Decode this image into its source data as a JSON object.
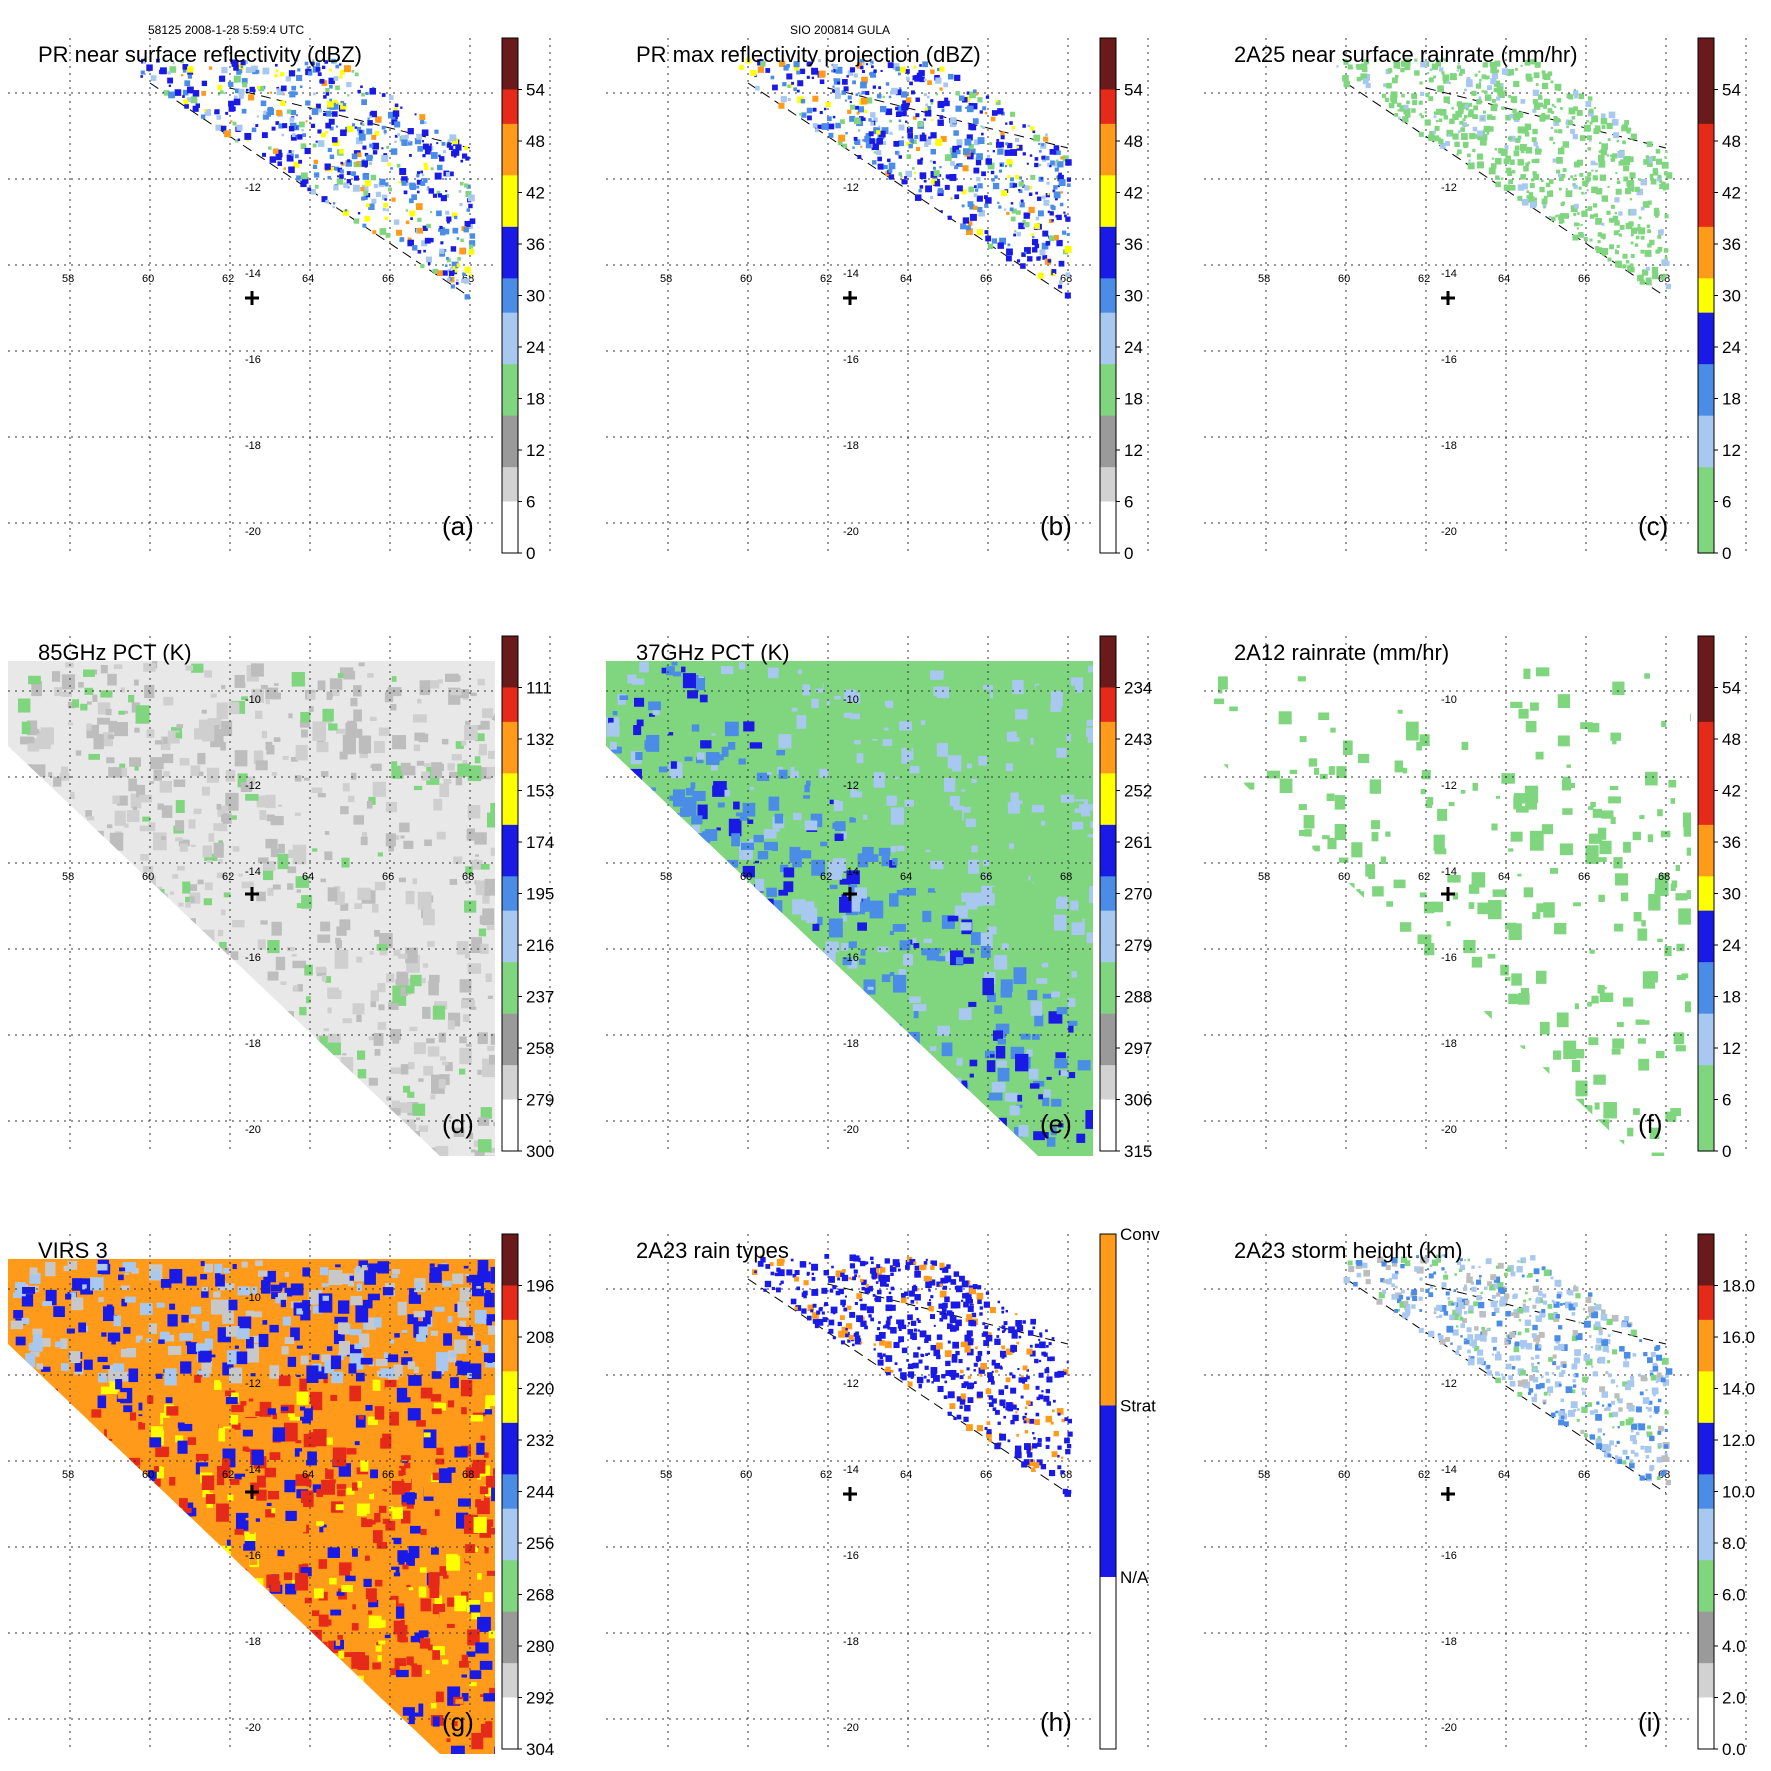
{
  "header": {
    "left": "58125 2008-1-28 5:59:4 UTC",
    "center": "SIO 200814 GULA"
  },
  "axes": {
    "lon_ticks": [
      "58",
      "60",
      "62",
      "64",
      "66",
      "68"
    ],
    "lat_ticks": [
      "-12",
      "-14",
      "-16",
      "-18",
      "-20"
    ],
    "lat_ticks_full": [
      "-10",
      "-12",
      "-14",
      "-16",
      "-18",
      "-20"
    ]
  },
  "colors": {
    "white": "#ffffff",
    "lightgray": "#d2d2d2",
    "gray": "#9a9a9a",
    "green": "#7fd67f",
    "lightblue": "#a8c8f0",
    "midblue": "#4a8ce6",
    "blue": "#1a1ae6",
    "yellow": "#ffff00",
    "orange": "#ff9a1a",
    "red": "#e62a1a",
    "darkred": "#6a1a1a"
  },
  "panels": [
    {
      "id": "a",
      "title": "PR near surface reflectivity (dBZ)",
      "label": "(a)",
      "colorbar": [
        "54",
        "48",
        "42",
        "36",
        "30",
        "24",
        "18",
        "12",
        "6",
        "0"
      ],
      "type": "swath"
    },
    {
      "id": "b",
      "title": "PR max reflectivity projection (dBZ)",
      "label": "(b)",
      "colorbar": [
        "54",
        "48",
        "42",
        "36",
        "30",
        "24",
        "18",
        "12",
        "6",
        "0"
      ],
      "type": "swath"
    },
    {
      "id": "c",
      "title": "2A25 near surface rainrate (mm/hr)",
      "label": "(c)",
      "colorbar": [
        "54",
        "48",
        "42",
        "36",
        "30",
        "24",
        "18",
        "12",
        "6",
        "0"
      ],
      "type": "swath"
    },
    {
      "id": "d",
      "title": "85GHz PCT (K)",
      "label": "(d)",
      "colorbar": [
        "111",
        "132",
        "153",
        "174",
        "195",
        "216",
        "237",
        "258",
        "279",
        "300"
      ],
      "type": "wide"
    },
    {
      "id": "e",
      "title": "37GHz PCT (K)",
      "label": "(e)",
      "colorbar": [
        "234",
        "243",
        "252",
        "261",
        "270",
        "279",
        "288",
        "297",
        "306",
        "315"
      ],
      "type": "wide"
    },
    {
      "id": "f",
      "title": "2A12 rainrate (mm/hr)",
      "label": "(f)",
      "colorbar": [
        "54",
        "48",
        "42",
        "36",
        "30",
        "24",
        "18",
        "12",
        "6",
        "0"
      ],
      "type": "wide"
    },
    {
      "id": "g",
      "title": "VIRS 3",
      "label": "(g)",
      "colorbar": [
        "196",
        "208",
        "220",
        "232",
        "244",
        "256",
        "268",
        "280",
        "292",
        "304"
      ],
      "type": "wide"
    },
    {
      "id": "h",
      "title": "2A23 rain types",
      "label": "(h)",
      "colorbar": [
        "Conv",
        "Strat",
        "N/A"
      ],
      "type": "swath"
    },
    {
      "id": "i",
      "title": "2A23 storm height (km)",
      "label": "(i)",
      "colorbar": [
        "18.0",
        "16.0",
        "14.0",
        "12.0",
        "10.0",
        "8.0",
        "6.0",
        "4.0",
        "2.0",
        "0.0"
      ],
      "type": "swath"
    }
  ]
}
